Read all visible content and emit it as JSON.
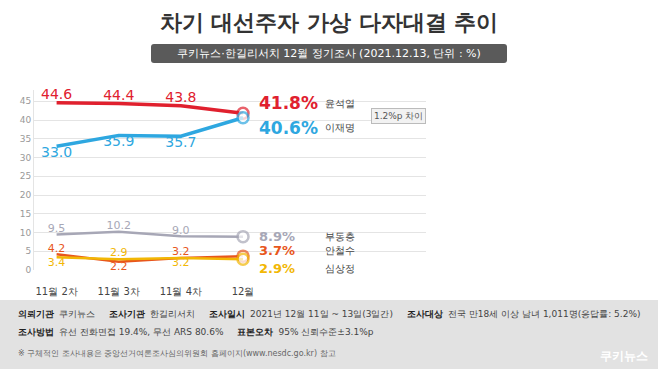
{
  "chart_data": {
    "type": "line",
    "title": "차기 대선주자 가상 다자대결 추이",
    "subtitle": "쿠키뉴스·한길리서치 12월 정기조사 (2021.12.13, 단위 : %)",
    "categories": [
      "11월 2차",
      "11월 3차",
      "11월 4차",
      "12월"
    ],
    "series": [
      {
        "name": "윤석열",
        "color": "#e0202e",
        "values": [
          44.6,
          44.4,
          43.8,
          41.8
        ],
        "value_labels": [
          "44.6",
          "44.4",
          "43.8",
          "41.8%"
        ]
      },
      {
        "name": "이재명",
        "color": "#2ea7e0",
        "values": [
          33.0,
          35.9,
          35.7,
          40.6
        ],
        "value_labels": [
          "33.0",
          "35.9",
          "35.7",
          "40.6%"
        ]
      },
      {
        "name": "부동층",
        "color": "#a7a7b6",
        "values": [
          9.5,
          10.2,
          9.0,
          8.9
        ],
        "value_labels": [
          "9.5",
          "10.2",
          "9.0",
          "8.9%"
        ]
      },
      {
        "name": "안철수",
        "color": "#e8561c",
        "values": [
          4.2,
          2.2,
          3.2,
          3.7
        ],
        "value_labels": [
          "4.2",
          "2.2",
          "3.2",
          "3.7%"
        ]
      },
      {
        "name": "심상정",
        "color": "#f2b705",
        "values": [
          3.4,
          2.9,
          3.2,
          2.9
        ],
        "value_labels": [
          "3.4",
          "2.9",
          "3.2",
          "2.9%"
        ]
      }
    ],
    "ylim": [
      0,
      48
    ],
    "yticks": [
      0,
      5,
      10,
      15,
      20,
      25,
      30,
      35,
      40,
      45
    ],
    "grid": true,
    "data_labels": true,
    "line_style": "solid",
    "annotations": [
      "1.2%p 차이"
    ]
  },
  "footer": {
    "rows": [
      [
        [
          "의뢰기관",
          "쿠키뉴스"
        ],
        [
          "조사기관",
          "한길리서치"
        ],
        [
          "조사일시",
          "2021년 12월 11일 ~ 13일(3일간)"
        ],
        [
          "조사대상",
          "전국 만18세 이상 남녀 1,011명(응답률: 5.2%)"
        ]
      ],
      [
        [
          "조사방법",
          "유선 전화면접 19.4%, 무선 ARS 80.6%"
        ],
        [
          "표본오차",
          "95% 신뢰수준±3.1%p"
        ]
      ]
    ],
    "note": "※ 구체적인 조사내용은 중앙선거여론조사심의위원회 홈페이지(www.nesdc.go.kr) 참고"
  },
  "logo": "쿠키뉴스"
}
